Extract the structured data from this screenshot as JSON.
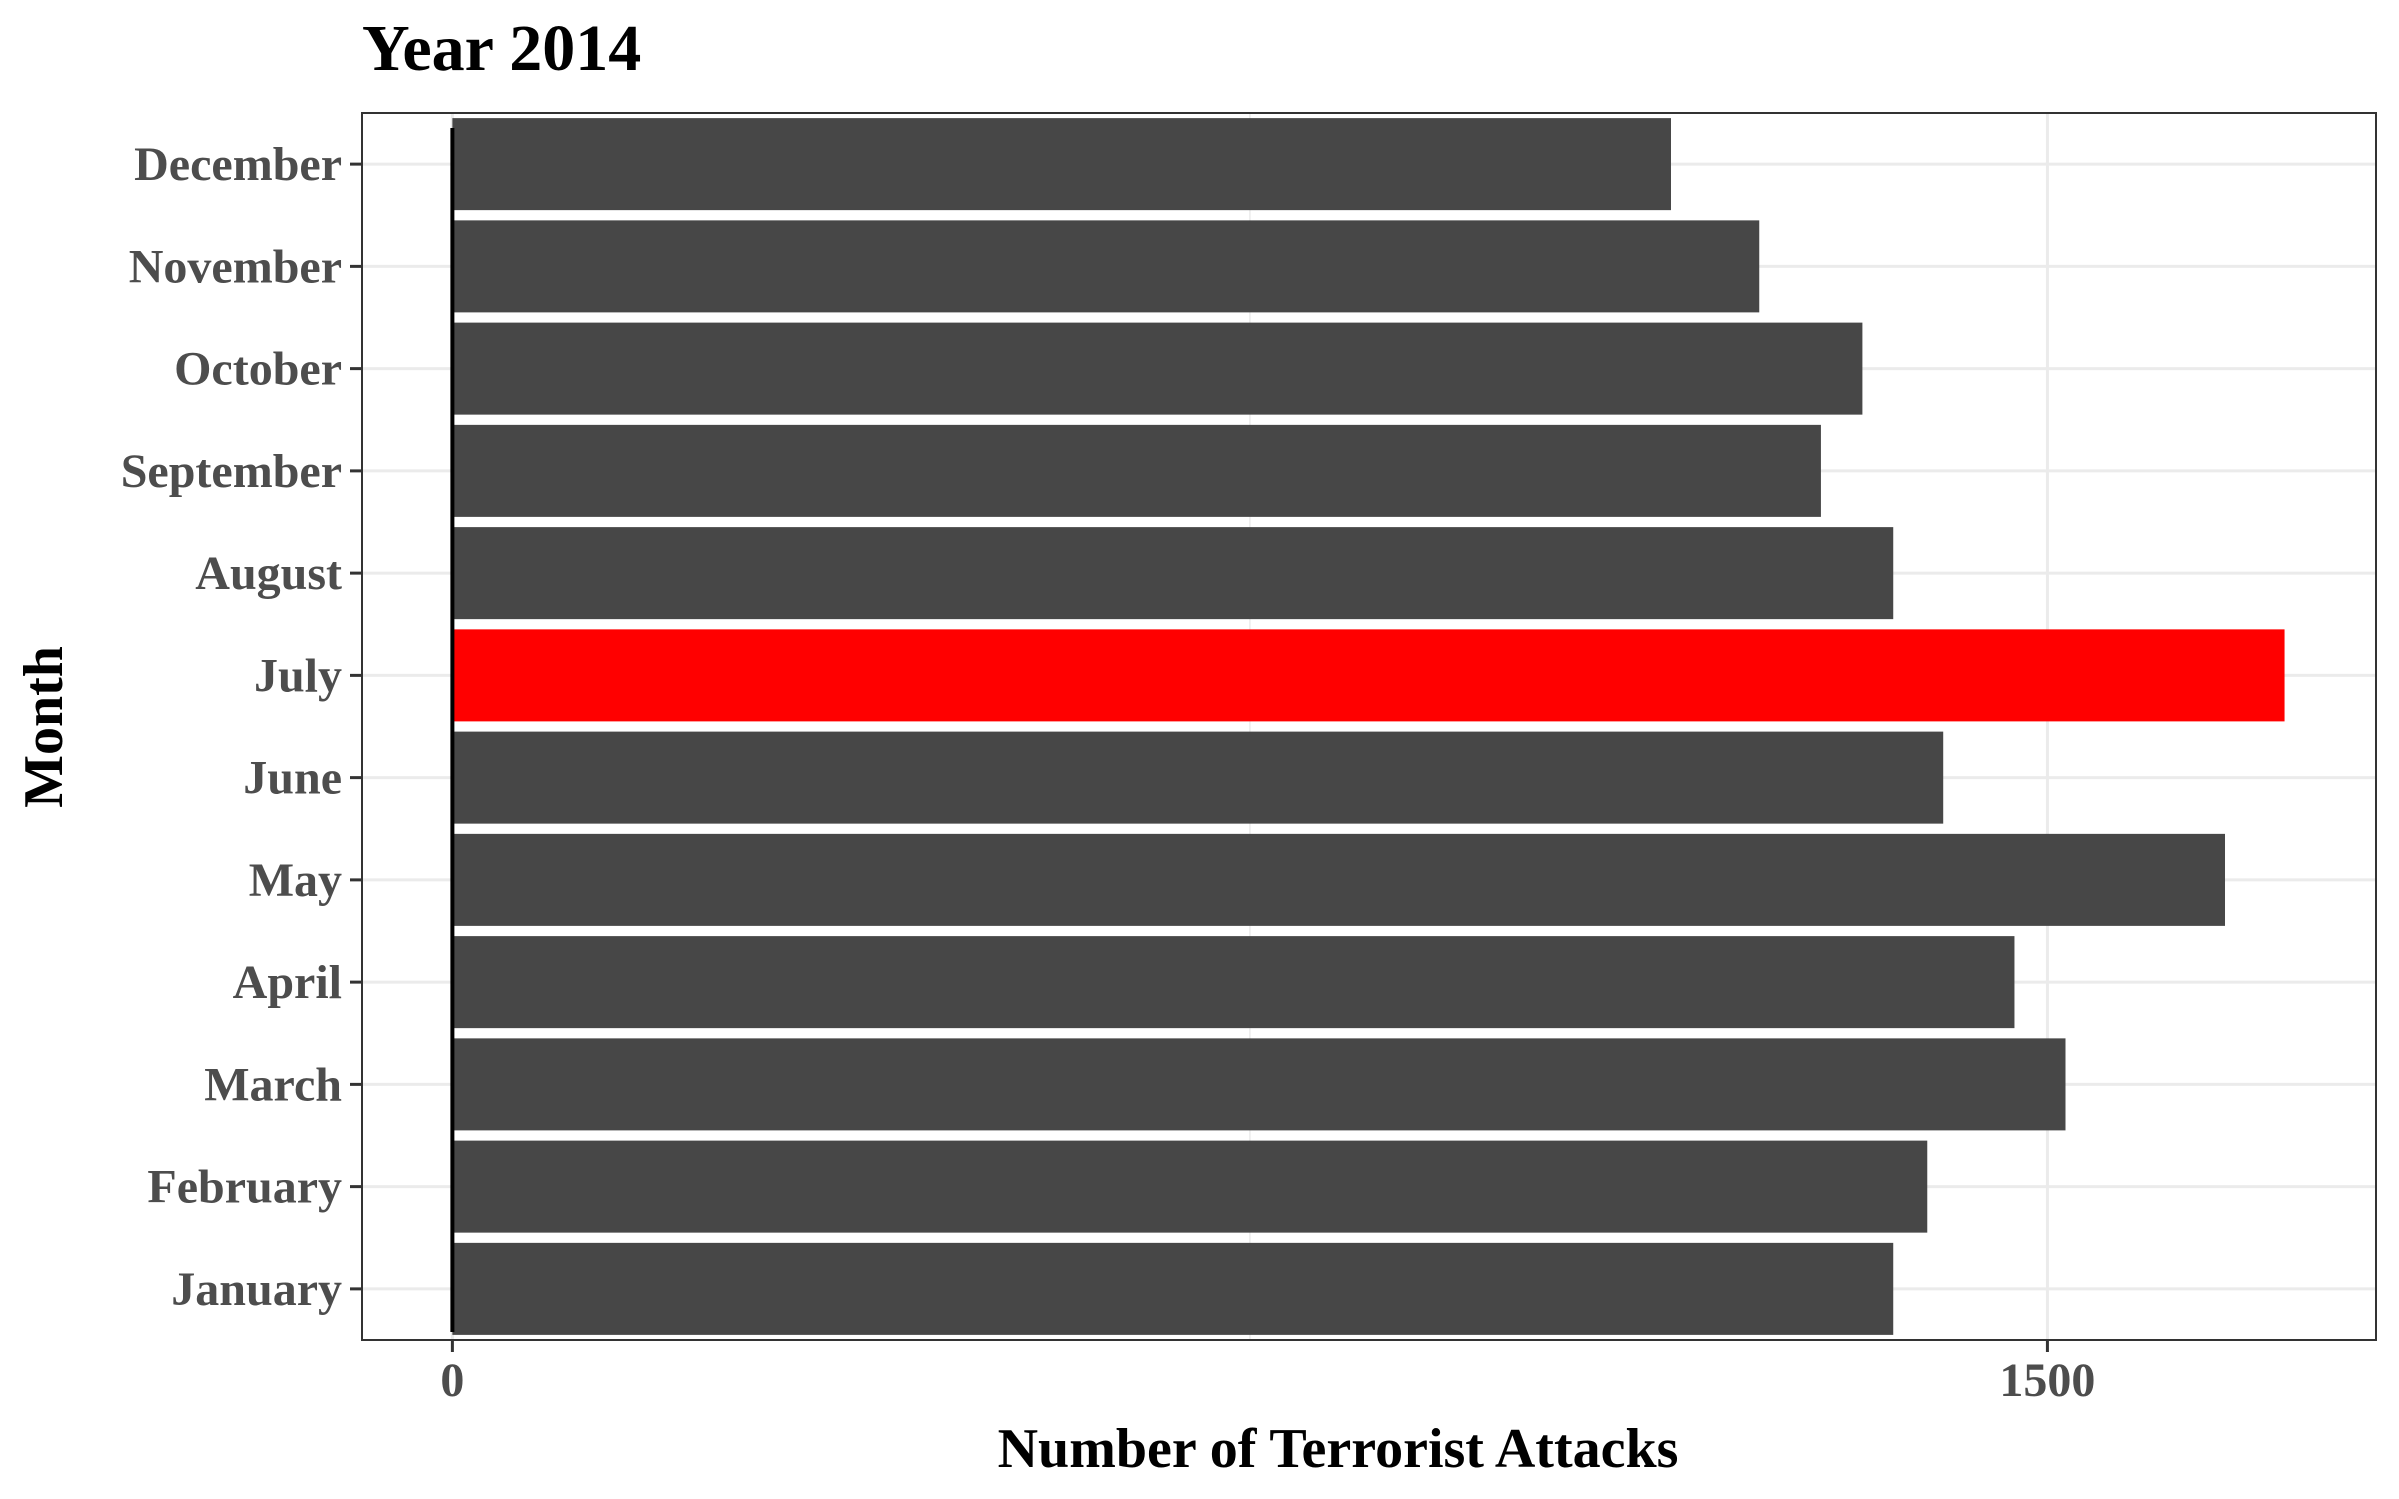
{
  "chart_data": {
    "type": "bar",
    "orientation": "horizontal",
    "title": "Year 2014",
    "xlabel": "Number of Terrorist Attacks",
    "ylabel": "Month",
    "categories": [
      "January",
      "February",
      "March",
      "April",
      "May",
      "June",
      "July",
      "August",
      "September",
      "October",
      "November",
      "December"
    ],
    "values": [
      1355,
      1387,
      1517,
      1469,
      1667,
      1402,
      1723,
      1355,
      1287,
      1326,
      1229,
      1146
    ],
    "highlight_category": "July",
    "xlim": [
      -85,
      1809
    ],
    "xticks": [
      0,
      1500
    ],
    "xtick_labels": [
      "0",
      "1500"
    ],
    "grid": true,
    "colors": {
      "bar": "#474747",
      "highlight": "#ff0000",
      "grid": "#ebebeb",
      "panel_border": "#333333"
    }
  }
}
